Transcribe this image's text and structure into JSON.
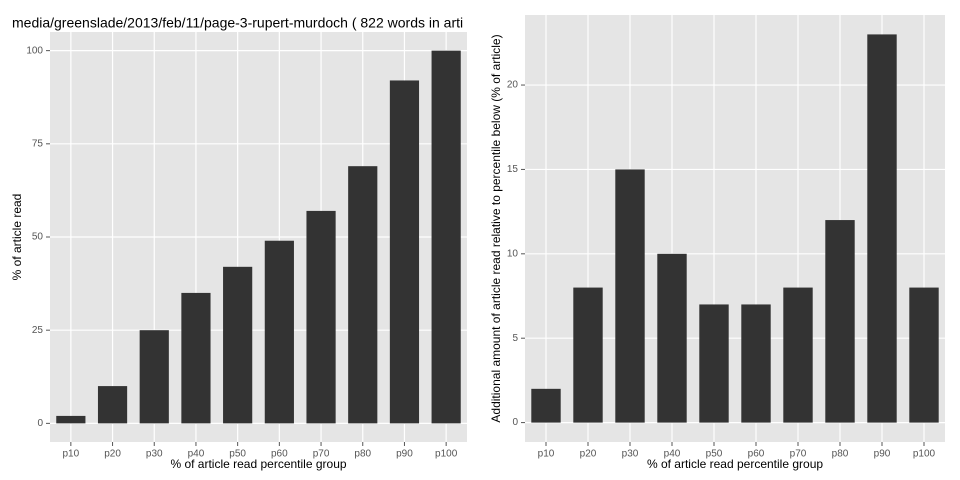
{
  "chart_data": [
    {
      "type": "bar",
      "title": "media/greenslade/2013/feb/11/page-3-rupert-murdoch ( 822 words in arti",
      "categories": [
        "p10",
        "p20",
        "p30",
        "p40",
        "p50",
        "p60",
        "p70",
        "p80",
        "p90",
        "p100"
      ],
      "values": [
        2,
        10,
        25,
        35,
        42,
        49,
        57,
        69,
        92,
        100
      ],
      "color": "#333333",
      "ylim": [
        -5,
        105
      ],
      "yticks": [
        0,
        25,
        50,
        75,
        100
      ],
      "grid": true,
      "x_label": "% of article read percentile group",
      "y_label": "% of article read"
    },
    {
      "type": "bar",
      "categories": [
        "p10",
        "p20",
        "p30",
        "p40",
        "p50",
        "p60",
        "p70",
        "p80",
        "p90",
        "p100"
      ],
      "values": [
        2,
        8,
        15,
        10,
        7,
        7,
        8,
        12,
        23,
        8
      ],
      "color": "#333333",
      "ylim": [
        -1.15,
        24.15
      ],
      "yticks": [
        0,
        5,
        10,
        15,
        20
      ],
      "grid": true,
      "x_label": "% of article read percentile group",
      "y_label": "Additional amount of article read relative to percentile below (% of article)"
    }
  ]
}
